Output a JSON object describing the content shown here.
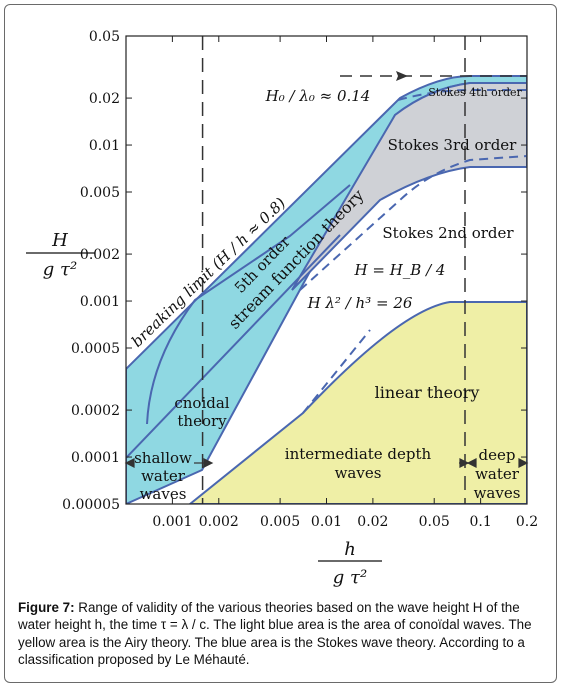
{
  "chart_data": {
    "type": "diagram",
    "x_scale": "log",
    "y_scale": "log",
    "xlim": [
      0.0005,
      0.2
    ],
    "ylim": [
      5e-05,
      0.05
    ],
    "xticks": [
      "0.001",
      "0.002",
      "0.005",
      "0.01",
      "0.02",
      "0.05",
      "0.1",
      "0.2"
    ],
    "xtick_values": [
      0.001,
      0.002,
      0.005,
      0.01,
      0.02,
      0.05,
      0.1,
      0.2
    ],
    "yticks": [
      "0.05",
      "0.02",
      "0.01",
      "0.005",
      "0.002",
      "0.001",
      "0.0005",
      "0.0002",
      "0.0001",
      "0.00005"
    ],
    "ytick_values": [
      0.05,
      0.02,
      0.01,
      0.005,
      0.002,
      0.001,
      0.0005,
      0.0002,
      0.0001,
      5e-05
    ],
    "xlabel_num": "h",
    "xlabel_den": "g τ²",
    "ylabel_num": "H",
    "ylabel_den": "g τ²",
    "shallow_limit_x": 0.00157,
    "deep_limit_x": 0.0792,
    "regions": {
      "shallow": [
        "shallow",
        "water",
        "waves"
      ],
      "intermediate": [
        "intermediate depth",
        "waves"
      ],
      "deep": [
        "deep",
        "water",
        "waves"
      ],
      "linear": "linear theory",
      "cnoidal": [
        "cnoidal",
        "theory"
      ],
      "stokes2": "Stokes 2nd order",
      "stokes3": "Stokes 3rd order",
      "stokes4": "Stokes 4th order",
      "stream1": "5th order",
      "stream2": "stream function theory"
    },
    "curve_labels": {
      "breaking": "breaking limit (H / h ≈ 0.8)",
      "steepness": "H₀ / λ₀ ≈ 0.14",
      "hb4": "H = H_B / 4",
      "ursell": "H λ² / h³ = 26"
    },
    "colors": {
      "blue_fill": "#8fd8e2",
      "blue_line": "#4a67b0",
      "yellow_fill": "#efefa6",
      "gray_fill": "#cfd1d6",
      "dash": "#333333"
    }
  },
  "caption": {
    "label": "Figure 7:",
    "text": " Range of validity of the various theories based on the wave height H of the water height h, the time τ = λ / c. The light blue area is the area of conoïdal waves. The yellow area is the Airy theory. The blue area is the Stokes wave theory. According to a classification proposed by Le Méhauté."
  }
}
